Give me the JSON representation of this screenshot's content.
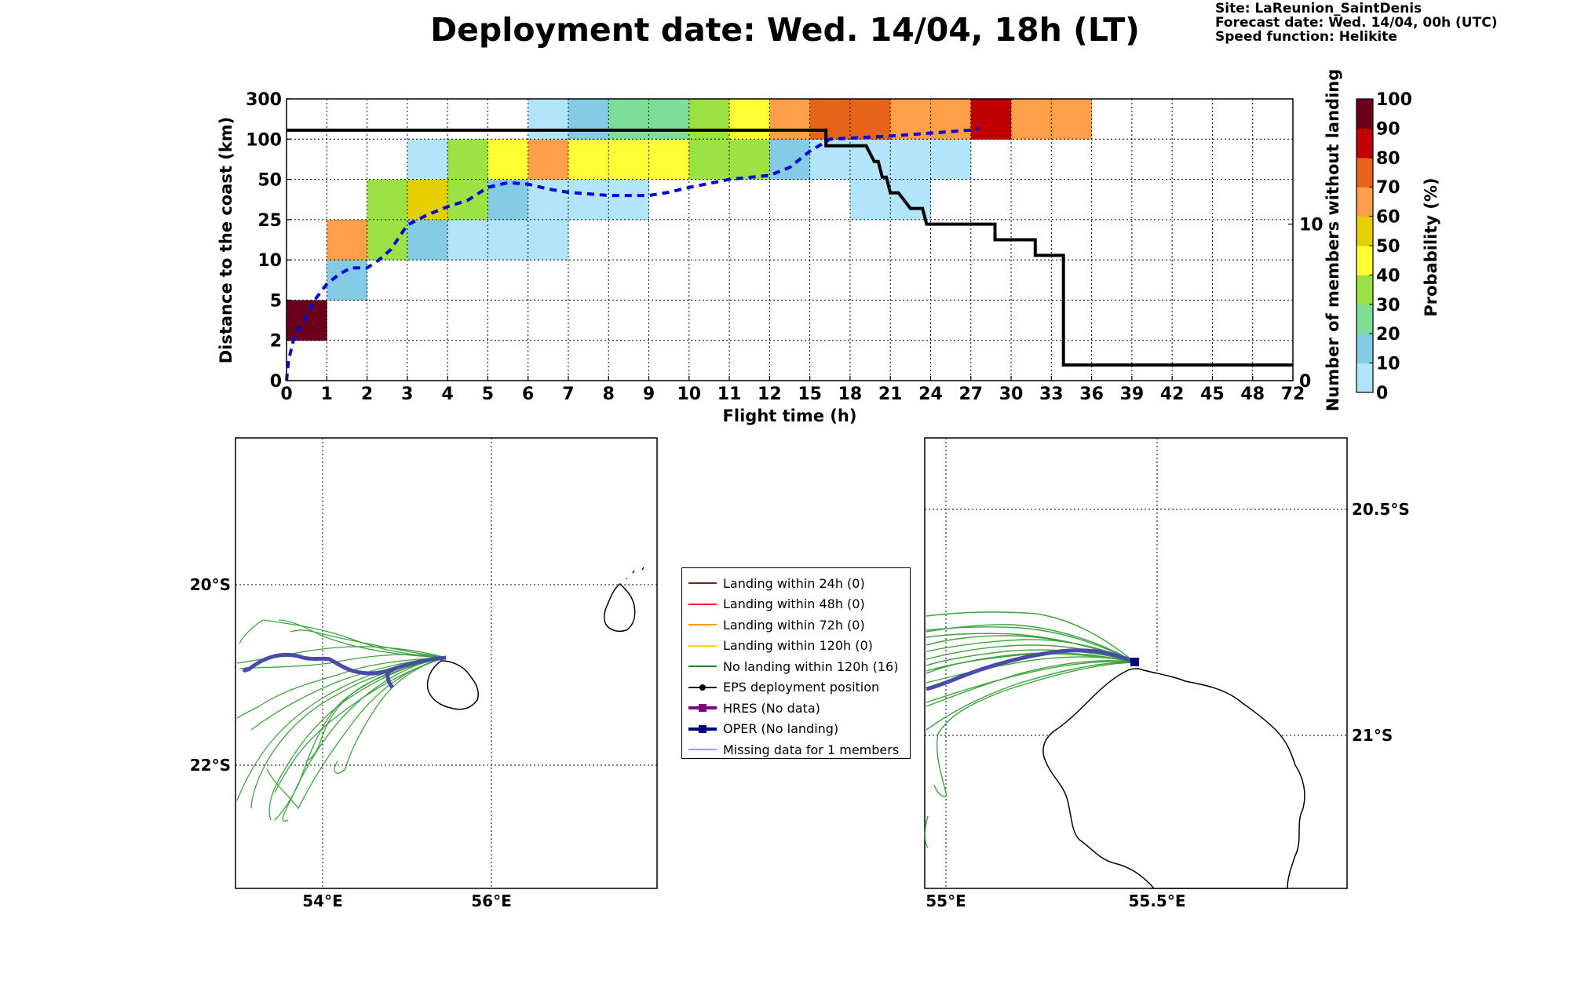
{
  "header": {
    "title": "Deployment date: Wed. 14/04, 18h (LT)",
    "site": "Site: LaReunion_SaintDenis",
    "forecast": "Forecast date: Wed. 14/04, 00h (UTC)",
    "speed": "Speed function: Helikite"
  },
  "chart_data": [
    {
      "type": "heatmap",
      "xlabel": "Flight time (h)",
      "ylabel": "Distance to the coast (km)",
      "y2label": "Number of members without landing",
      "x_tick_labels": [
        "0",
        "1",
        "2",
        "3",
        "4",
        "5",
        "6",
        "7",
        "8",
        "9",
        "10",
        "11",
        "12",
        "15",
        "18",
        "21",
        "24",
        "27",
        "30",
        "33",
        "36",
        "39",
        "42",
        "45",
        "48",
        "72"
      ],
      "y_tick_labels": [
        "0",
        "2",
        "5",
        "10",
        "25",
        "50",
        "100",
        "300"
      ],
      "y2_tick_labels": [
        "0",
        "10"
      ],
      "y2_ylim": [
        0,
        18
      ],
      "colorbar": {
        "label": "Probability (%)",
        "ticks": [
          "0",
          "10",
          "20",
          "30",
          "40",
          "50",
          "60",
          "70",
          "80",
          "90",
          "100"
        ],
        "colors": [
          "#b3e5fa",
          "#84cbe6",
          "#7ddf97",
          "#9ae342",
          "#ffff33",
          "#e6cf00",
          "#ff9f4a",
          "#e5641a",
          "#c00000",
          "#6c001c"
        ]
      },
      "cells": [
        {
          "xbin": 0,
          "ybin": 1,
          "prob": 100
        },
        {
          "xbin": 1,
          "ybin": 2,
          "prob": 20
        },
        {
          "xbin": 1,
          "ybin": 3,
          "prob": 70
        },
        {
          "xbin": 2,
          "ybin": 3,
          "prob": 40
        },
        {
          "xbin": 2,
          "ybin": 4,
          "prob": 40
        },
        {
          "xbin": 3,
          "ybin": 3,
          "prob": 20
        },
        {
          "xbin": 3,
          "ybin": 4,
          "prob": 60
        },
        {
          "xbin": 3,
          "ybin": 5,
          "prob": 0
        },
        {
          "xbin": 4,
          "ybin": 3,
          "prob": 0
        },
        {
          "xbin": 4,
          "ybin": 4,
          "prob": 40
        },
        {
          "xbin": 4,
          "ybin": 5,
          "prob": 40
        },
        {
          "xbin": 5,
          "ybin": 3,
          "prob": 0
        },
        {
          "xbin": 5,
          "ybin": 4,
          "prob": 20
        },
        {
          "xbin": 5,
          "ybin": 5,
          "prob": 50
        },
        {
          "xbin": 6,
          "ybin": 3,
          "prob": 0
        },
        {
          "xbin": 6,
          "ybin": 4,
          "prob": 10
        },
        {
          "xbin": 6,
          "ybin": 5,
          "prob": 70
        },
        {
          "xbin": 6,
          "ybin": 6,
          "prob": 0
        },
        {
          "xbin": 7,
          "ybin": 4,
          "prob": 10
        },
        {
          "xbin": 7,
          "ybin": 5,
          "prob": 50
        },
        {
          "xbin": 7,
          "ybin": 6,
          "prob": 20
        },
        {
          "xbin": 8,
          "ybin": 4,
          "prob": 0
        },
        {
          "xbin": 8,
          "ybin": 5,
          "prob": 50
        },
        {
          "xbin": 8,
          "ybin": 6,
          "prob": 30
        },
        {
          "xbin": 9,
          "ybin": 5,
          "prob": 50
        },
        {
          "xbin": 9,
          "ybin": 6,
          "prob": 30
        },
        {
          "xbin": 10,
          "ybin": 5,
          "prob": 40
        },
        {
          "xbin": 10,
          "ybin": 6,
          "prob": 40
        },
        {
          "xbin": 11,
          "ybin": 5,
          "prob": 40
        },
        {
          "xbin": 11,
          "ybin": 6,
          "prob": 50
        },
        {
          "xbin": 12,
          "ybin": 5,
          "prob": 20
        },
        {
          "xbin": 12,
          "ybin": 6,
          "prob": 70
        },
        {
          "xbin": 13,
          "ybin": 5,
          "prob": 10
        },
        {
          "xbin": 13,
          "ybin": 6,
          "prob": 80
        },
        {
          "xbin": 14,
          "ybin": 4,
          "prob": 0
        },
        {
          "xbin": 14,
          "ybin": 5,
          "prob": 0
        },
        {
          "xbin": 14,
          "ybin": 6,
          "prob": 80
        },
        {
          "xbin": 15,
          "ybin": 4,
          "prob": 0
        },
        {
          "xbin": 15,
          "ybin": 5,
          "prob": 0
        },
        {
          "xbin": 15,
          "ybin": 6,
          "prob": 70
        },
        {
          "xbin": 16,
          "ybin": 5,
          "prob": 0
        },
        {
          "xbin": 16,
          "ybin": 6,
          "prob": 70
        },
        {
          "xbin": 17,
          "ybin": 6,
          "prob": 90
        },
        {
          "xbin": 18,
          "ybin": 6,
          "prob": 70
        },
        {
          "xbin": 19,
          "ybin": 6,
          "prob": 70
        }
      ],
      "members_without_landing": {
        "x_index": [
          0,
          13.4,
          13.4,
          14.4,
          14.6,
          14.7,
          14.8,
          14.9,
          15.0,
          15.2,
          15.5,
          15.8,
          15.9,
          17.6,
          17.6,
          18.6,
          18.6,
          19.3,
          19.3,
          25.0
        ],
        "members": [
          16,
          16,
          15,
          15,
          14,
          14,
          13,
          13,
          12,
          12,
          11,
          11,
          10,
          10,
          9,
          9,
          8,
          8,
          1,
          1
        ]
      },
      "median_distance": {
        "x_index": [
          0,
          0.05,
          0.2,
          0.4,
          0.7,
          1.0,
          1.3,
          1.6,
          2.0,
          2.3,
          2.6,
          3.0,
          3.5,
          4.0,
          4.5,
          5.0,
          5.5,
          6.0,
          6.5,
          7.0,
          8.0,
          9.0,
          9.5,
          10.0,
          11.0,
          12.0,
          12.5,
          13.0,
          13.5,
          14.0,
          15.0,
          16.0,
          17.0,
          17.2
        ],
        "distance_km": [
          0,
          1.0,
          2.4,
          3.3,
          5.0,
          7.0,
          8.2,
          9.0,
          9.0,
          10.0,
          14.0,
          23.0,
          28.0,
          33.0,
          37.0,
          45.0,
          48.0,
          47.0,
          44.0,
          42.0,
          40.0,
          40.0,
          42.0,
          45.0,
          50.0,
          55.0,
          65.0,
          85.0,
          100.0,
          105.0,
          115.0,
          130.0,
          145.0,
          155.0
        ]
      }
    }
  ],
  "colorbar": {
    "label": "Probability (%)",
    "ticks": [
      "0",
      "10",
      "20",
      "30",
      "40",
      "50",
      "60",
      "70",
      "80",
      "90",
      "100"
    ]
  },
  "maps": {
    "left": {
      "lon_labels": [
        "54°E",
        "56°E"
      ],
      "lat_labels": [
        "20°S",
        "22°S"
      ]
    },
    "right": {
      "lon_labels": [
        "55°E",
        "55.5°E"
      ],
      "lat_labels": [
        "20.5°S",
        "21°S"
      ]
    }
  },
  "legend": {
    "items": [
      {
        "label": "Landing within 24h (0)",
        "color": "#8b1a1a",
        "marker": "none",
        "width": 2
      },
      {
        "label": "Landing within 48h (0)",
        "color": "#ff2020",
        "marker": "none",
        "width": 2
      },
      {
        "label": "Landing within 72h (0)",
        "color": "#ff9900",
        "marker": "none",
        "width": 2
      },
      {
        "label": "Landing within 120h (0)",
        "color": "#ffd700",
        "marker": "none",
        "width": 2
      },
      {
        "label": "No landing within 120h (16)",
        "color": "#1a8a1a",
        "marker": "none",
        "width": 2
      },
      {
        "label": "EPS deployment position",
        "color": "#000000",
        "marker": "circle",
        "width": 2
      },
      {
        "label": "HRES (No data)",
        "color": "#800080",
        "marker": "square",
        "width": 4
      },
      {
        "label": "OPER (No landing)",
        "color": "#000080",
        "marker": "square",
        "width": 4
      },
      {
        "label": "Missing data for 1 members",
        "color": "#3333ff",
        "marker": "none",
        "width": 1
      }
    ]
  }
}
